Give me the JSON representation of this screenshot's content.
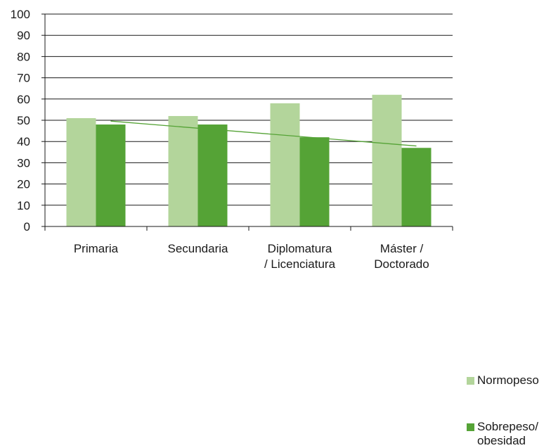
{
  "chart_data": {
    "type": "bar",
    "categories": [
      "Primaria",
      "Secundaria",
      "Diplomatura / Licenciatura",
      "Máster / Doctorado"
    ],
    "category_lines": [
      [
        "Primaria"
      ],
      [
        "Secundaria"
      ],
      [
        "Diplomatura",
        "/ Licenciatura"
      ],
      [
        "Máster /",
        "Doctorado"
      ]
    ],
    "series": [
      {
        "name": "Normopeso",
        "values": [
          51,
          52,
          58,
          62
        ],
        "color": "#b3d59b"
      },
      {
        "name": "Sobrepeso/ obesidad",
        "name_lines": [
          "Sobrepeso/",
          "obesidad"
        ],
        "values": [
          48,
          48,
          42,
          37
        ],
        "color": "#55a336"
      }
    ],
    "trendline": {
      "series": "Sobrepeso/ obesidad",
      "type": "linear",
      "color": "#55a336"
    },
    "ylim": [
      0,
      100
    ],
    "yticks": [
      0,
      10,
      20,
      30,
      40,
      50,
      60,
      70,
      80,
      90,
      100
    ],
    "grid": true,
    "legend_position": "right",
    "title": "",
    "xlabel": "",
    "ylabel": ""
  }
}
